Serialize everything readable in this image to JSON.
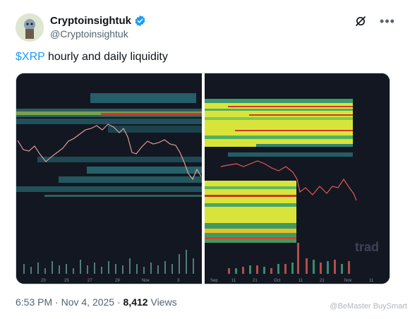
{
  "author": {
    "display_name": "Cryptoinsightuk",
    "handle": "@Cryptoinsightuk",
    "verified_color": "#1d9bf0"
  },
  "icons": [
    "avatar",
    "verified-badge-icon",
    "grok-icon",
    "more-icon"
  ],
  "tweet": {
    "cashtag": "$XRP",
    "text": " hourly and daily liquidity"
  },
  "media": {
    "left_chart": {
      "x_tick_labels": [
        "23",
        "25",
        "27",
        "29",
        "Nov",
        "3"
      ]
    },
    "right_chart": {
      "x_tick_labels": [
        "Sep",
        "11",
        "21",
        "Oct",
        "11",
        "21",
        "Nov",
        "11"
      ],
      "watermark": "trad"
    }
  },
  "footer": {
    "time": "6:53 PM",
    "date": "Nov 4, 2025",
    "views_count": "8,412",
    "views_label": "Views"
  },
  "overlay_watermark": "@BeMaster BuySmart"
}
